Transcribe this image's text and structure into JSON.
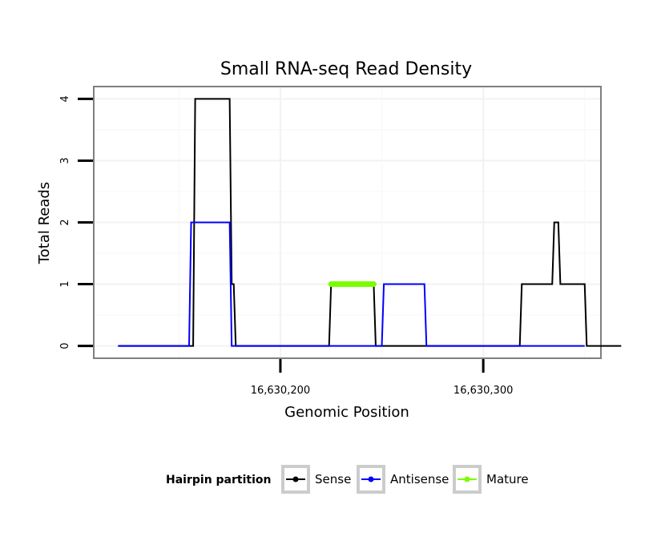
{
  "chart_data": {
    "type": "line",
    "title": "Small RNA-seq Read Density",
    "xlabel": "Genomic Position",
    "ylabel": "Total Reads",
    "xlim": [
      16630108,
      16630358
    ],
    "ylim": [
      -0.2,
      4.2
    ],
    "x_ticks": [
      16630200,
      16630300
    ],
    "x_tick_labels": [
      "16,630,200",
      "16,630,300"
    ],
    "y_ticks": [
      0,
      1,
      2,
      3,
      4
    ],
    "y_tick_labels": [
      "0",
      "1",
      "2",
      "3",
      "4"
    ],
    "grid": true,
    "legend": {
      "title": "Hairpin partition",
      "position": "bottom",
      "entries": [
        "Sense",
        "Antisense",
        "Mature"
      ]
    },
    "series": [
      {
        "name": "Sense",
        "color": "#000000",
        "points": [
          [
            16630120,
            0
          ],
          [
            16630157,
            0
          ],
          [
            16630158,
            4
          ],
          [
            16630175,
            4
          ],
          [
            16630176,
            1
          ],
          [
            16630177,
            1
          ],
          [
            16630178,
            0
          ],
          [
            16630224,
            0
          ],
          [
            16630225,
            1
          ],
          [
            16630246,
            1
          ],
          [
            16630247,
            0
          ],
          [
            16630318,
            0
          ],
          [
            16630319,
            1
          ],
          [
            16630334,
            1
          ],
          [
            16630335,
            2
          ],
          [
            16630337,
            2
          ],
          [
            16630338,
            1
          ],
          [
            16630350,
            1
          ],
          [
            16630351,
            0
          ],
          [
            16630368,
            0
          ]
        ]
      },
      {
        "name": "Antisense",
        "color": "#0000ff",
        "points": [
          [
            16630120,
            0
          ],
          [
            16630155,
            0
          ],
          [
            16630156,
            2
          ],
          [
            16630175,
            2
          ],
          [
            16630176,
            0
          ],
          [
            16630250,
            0
          ],
          [
            16630251,
            1
          ],
          [
            16630271,
            1
          ],
          [
            16630272,
            0
          ],
          [
            16630350,
            0
          ]
        ]
      },
      {
        "name": "Mature",
        "color": "#7cfc00",
        "points": [
          [
            16630225,
            1
          ],
          [
            16630246,
            1
          ]
        ]
      }
    ]
  }
}
